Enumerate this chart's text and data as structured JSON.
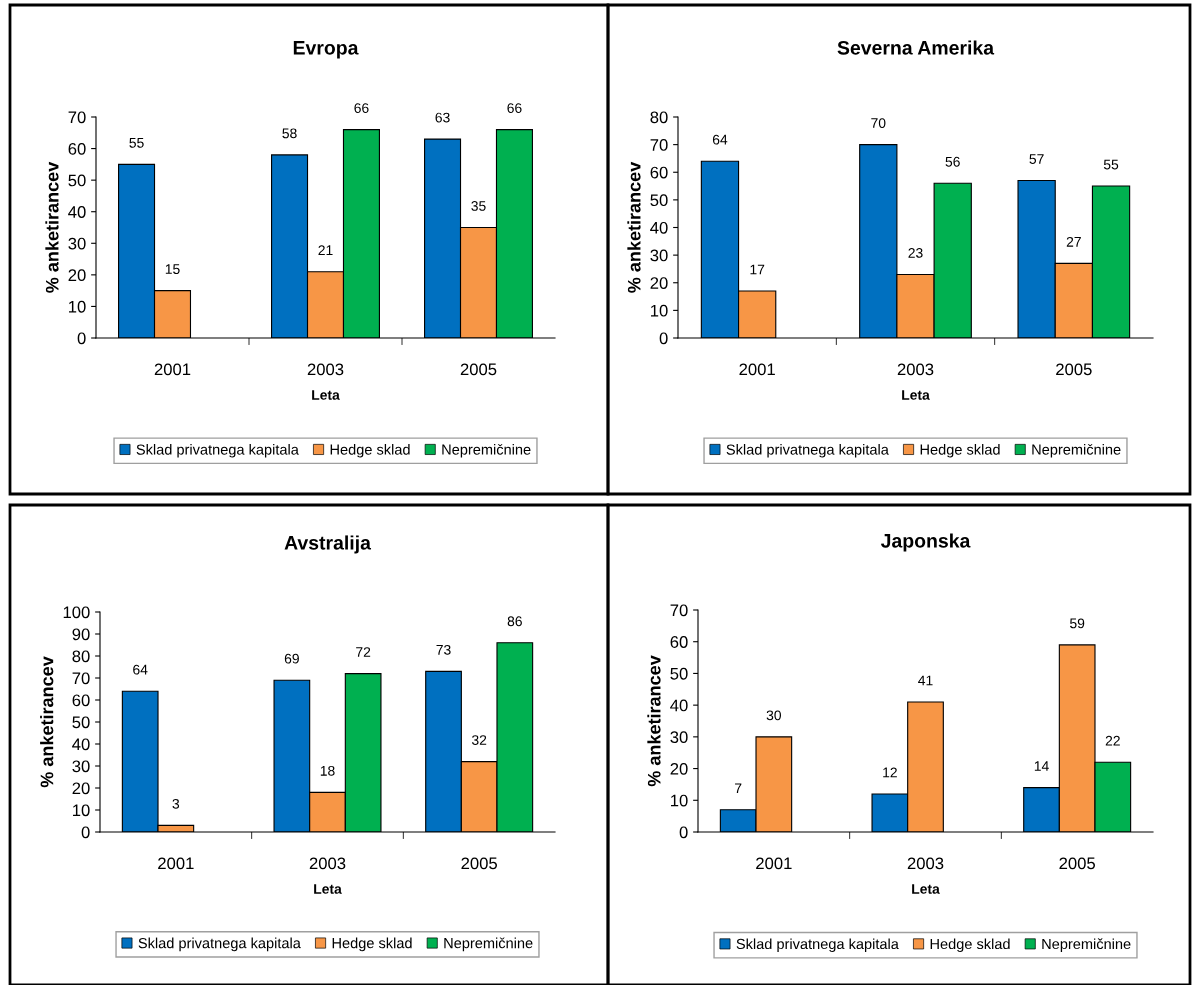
{
  "chart_data": [
    {
      "type": "bar",
      "title": "Evropa",
      "xlabel": "Leta",
      "ylabel": "% anketirancev",
      "categories": [
        "2001",
        "2003",
        "2005"
      ],
      "ylim": [
        0,
        70
      ],
      "yticks": [
        0,
        10,
        20,
        30,
        40,
        50,
        60,
        70
      ],
      "grid": false,
      "legend": "bottom",
      "data_labels": true,
      "series": [
        {
          "name": "Sklad privatnega kapitala",
          "color": "#0070c0",
          "values": [
            55,
            58,
            63
          ]
        },
        {
          "name": "Hedge sklad",
          "color": "#f79646",
          "values": [
            15,
            21,
            35
          ]
        },
        {
          "name": "Nepremičnine",
          "color": "#00b050",
          "values": [
            null,
            66,
            66
          ]
        }
      ]
    },
    {
      "type": "bar",
      "title": "Severna Amerika",
      "xlabel": "Leta",
      "ylabel": "% anketirancev",
      "categories": [
        "2001",
        "2003",
        "2005"
      ],
      "ylim": [
        0,
        80
      ],
      "yticks": [
        0,
        10,
        20,
        30,
        40,
        50,
        60,
        70,
        80
      ],
      "grid": false,
      "legend": "bottom",
      "data_labels": true,
      "series": [
        {
          "name": "Sklad privatnega kapitala",
          "color": "#0070c0",
          "values": [
            64,
            70,
            57
          ]
        },
        {
          "name": "Hedge sklad",
          "color": "#f79646",
          "values": [
            17,
            23,
            27
          ]
        },
        {
          "name": "Nepremičnine",
          "color": "#00b050",
          "values": [
            null,
            56,
            55
          ]
        }
      ]
    },
    {
      "type": "bar",
      "title": "Avstralija",
      "xlabel": "Leta",
      "ylabel": "% anketirancev",
      "categories": [
        "2001",
        "2003",
        "2005"
      ],
      "ylim": [
        0,
        100
      ],
      "yticks": [
        0,
        10,
        20,
        30,
        40,
        50,
        60,
        70,
        80,
        90,
        100
      ],
      "grid": false,
      "legend": "bottom",
      "data_labels": true,
      "series": [
        {
          "name": "Sklad privatnega kapitala",
          "color": "#0070c0",
          "values": [
            64,
            69,
            73
          ]
        },
        {
          "name": "Hedge sklad",
          "color": "#f79646",
          "values": [
            3,
            18,
            32
          ]
        },
        {
          "name": "Nepremičnine",
          "color": "#00b050",
          "values": [
            null,
            72,
            86
          ]
        }
      ]
    },
    {
      "type": "bar",
      "title": "Japonska",
      "xlabel": "Leta",
      "ylabel": "% anketirancev",
      "categories": [
        "2001",
        "2003",
        "2005"
      ],
      "ylim": [
        0,
        70
      ],
      "yticks": [
        0,
        10,
        20,
        30,
        40,
        50,
        60,
        70
      ],
      "grid": false,
      "legend": "bottom",
      "data_labels": true,
      "series": [
        {
          "name": "Sklad privatnega kapitala",
          "color": "#0070c0",
          "values": [
            7,
            12,
            14
          ]
        },
        {
          "name": "Hedge sklad",
          "color": "#f79646",
          "values": [
            30,
            41,
            59
          ]
        },
        {
          "name": "Nepremičnine",
          "color": "#00b050",
          "values": [
            null,
            null,
            22
          ]
        }
      ]
    }
  ]
}
